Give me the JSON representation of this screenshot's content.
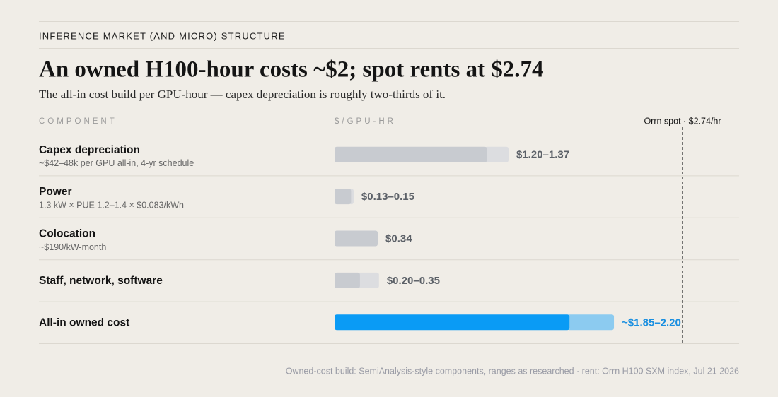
{
  "eyebrow": "INFERENCE MARKET (AND MICRO) STRUCTURE",
  "chart_data": {
    "type": "range-bar",
    "title": "An owned H100-hour costs ~$2; spot rents at $2.74",
    "subtitle": "The all-in cost build per GPU-hour — capex depreciation is roughly two-thirds of it.",
    "column_headers": [
      "COMPONENT",
      "$/GPU-HR"
    ],
    "categories": [
      "Capex depreciation",
      "Power",
      "Colocation",
      "Staff, network, software",
      "All-in owned cost"
    ],
    "notes": [
      "~$42–48k per GPU all-in, 4-yr schedule",
      "1.3 kW × PUE 1.2–1.4 × $0.083/kWh",
      "~$190/kW-month",
      null,
      null
    ],
    "low": [
      1.2,
      0.13,
      0.34,
      0.2,
      1.85
    ],
    "high": [
      1.37,
      0.15,
      null,
      0.35,
      2.2
    ],
    "value_labels": [
      "$1.20–1.37",
      "$0.13–0.15",
      "$0.34",
      "$0.20–0.35",
      "~$1.85–2.20"
    ],
    "highlight": [
      false,
      false,
      false,
      false,
      true
    ],
    "color": "#c8cbd0",
    "range_color": "#dcdde0",
    "highlight_color": "#0a9bf5",
    "highlight_range_color": "#8ccbf0",
    "reference": {
      "label": "Orrn spot · $2.74/hr",
      "value": 2.74
    },
    "source": "Owned-cost build: SemiAnalysis-style components, ranges as researched · rent: Orrn H100 SXM index, Jul 21 2026"
  }
}
